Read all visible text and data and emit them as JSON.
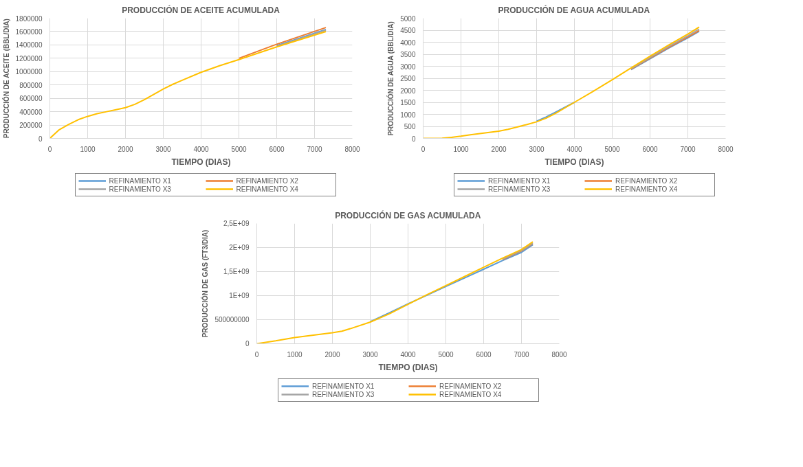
{
  "chart_data": [
    {
      "type": "line",
      "title": "PRODUCCIÓN DE ACEITE ACUMULADA",
      "xlabel": "TIEMPO (DIAS)",
      "ylabel": "PRODUCCIÓN DE ACEITE (BBL/DIA)",
      "x": [
        0,
        250,
        500,
        750,
        1000,
        1250,
        1500,
        1750,
        2000,
        2250,
        2500,
        2750,
        3000,
        3250,
        3500,
        4000,
        4500,
        5000,
        6000,
        7300
      ],
      "series": [
        {
          "name": "REFINAMIENTO X1",
          "color": "#5b9bd5",
          "values": [
            null,
            null,
            null,
            null,
            null,
            null,
            null,
            null,
            null,
            null,
            null,
            null,
            null,
            null,
            null,
            null,
            null,
            null,
            1390000,
            1630000
          ]
        },
        {
          "name": "REFINAMIENTO X2",
          "color": "#ed7d31",
          "values": [
            null,
            null,
            null,
            null,
            null,
            null,
            null,
            null,
            null,
            null,
            null,
            null,
            null,
            null,
            null,
            null,
            null,
            1200000,
            1410000,
            1660000
          ]
        },
        {
          "name": "REFINAMIENTO X3",
          "color": "#a5a5a5",
          "values": [
            null,
            null,
            null,
            null,
            null,
            null,
            null,
            null,
            null,
            null,
            null,
            null,
            null,
            null,
            null,
            null,
            null,
            null,
            1380000,
            1620000
          ]
        },
        {
          "name": "REFINAMIENTO X4",
          "color": "#ffc000",
          "values": [
            0,
            130000,
            210000,
            280000,
            330000,
            370000,
            400000,
            430000,
            460000,
            510000,
            580000,
            660000,
            740000,
            810000,
            870000,
            990000,
            1090000,
            1180000,
            1370000,
            1600000
          ]
        }
      ],
      "xlim": [
        0,
        8000
      ],
      "xticks": [
        0,
        1000,
        2000,
        3000,
        4000,
        5000,
        6000,
        7000,
        8000
      ],
      "ylim": [
        0,
        1800000
      ],
      "yticks": [
        0,
        200000,
        400000,
        600000,
        800000,
        1000000,
        1200000,
        1400000,
        1600000,
        1800000
      ],
      "grid": true,
      "legend": "bottom"
    },
    {
      "type": "line",
      "title": "PRODUCCIÓN DE AGUA ACUMULADA",
      "xlabel": "TIEMPO (DIAS)",
      "ylabel": "PRODUCCIÓN DE AGUA (BBL/DIA)",
      "x": [
        0,
        500,
        750,
        1000,
        1250,
        1500,
        1750,
        2000,
        2250,
        2500,
        2750,
        3000,
        3250,
        3500,
        4000,
        4500,
        5000,
        5500,
        6000,
        6500,
        7000,
        7300
      ],
      "series": [
        {
          "name": "REFINAMIENTO X1",
          "color": "#5b9bd5",
          "values": [
            null,
            null,
            null,
            null,
            null,
            null,
            null,
            null,
            null,
            null,
            null,
            720,
            890,
            1090,
            1500,
            null,
            null,
            2860,
            3310,
            3760,
            4180,
            4450
          ]
        },
        {
          "name": "REFINAMIENTO X2",
          "color": "#ed7d31",
          "values": [
            null,
            null,
            null,
            null,
            null,
            null,
            null,
            null,
            null,
            null,
            null,
            null,
            null,
            null,
            null,
            null,
            null,
            2880,
            3340,
            3790,
            4220,
            4480
          ]
        },
        {
          "name": "REFINAMIENTO X3",
          "color": "#a5a5a5",
          "values": [
            null,
            null,
            null,
            null,
            null,
            null,
            null,
            null,
            null,
            null,
            null,
            null,
            null,
            null,
            null,
            null,
            null,
            2900,
            3370,
            3830,
            4270,
            4550
          ]
        },
        {
          "name": "REFINAMIENTO X4",
          "color": "#ffc000",
          "values": [
            0,
            10,
            40,
            90,
            150,
            200,
            250,
            300,
            380,
            480,
            580,
            690,
            840,
            1040,
            1500,
            1960,
            2440,
            2930,
            3420,
            3890,
            4340,
            4630
          ]
        }
      ],
      "xlim": [
        0,
        8000
      ],
      "xticks": [
        0,
        1000,
        2000,
        3000,
        4000,
        5000,
        6000,
        7000,
        8000
      ],
      "ylim": [
        0,
        5000
      ],
      "yticks": [
        0,
        500,
        1000,
        1500,
        2000,
        2500,
        3000,
        3500,
        4000,
        4500,
        5000
      ],
      "grid": true,
      "legend": "bottom"
    },
    {
      "type": "line",
      "title": "PRODUCCIÓN DE GAS ACUMULADA",
      "xlabel": "TIEMPO (DIAS)",
      "ylabel": "PRODUCCIÓN DE GAS (FT3/DIA)",
      "x": [
        0,
        500,
        1000,
        1500,
        2000,
        2250,
        2500,
        3000,
        3500,
        4000,
        4500,
        5000,
        5500,
        6000,
        6500,
        7000,
        7300
      ],
      "series": [
        {
          "name": "REFINAMIENTO X1",
          "color": "#5b9bd5",
          "values": [
            null,
            null,
            null,
            null,
            null,
            null,
            null,
            460000000,
            640000000,
            830000000,
            1010000000,
            1190000000,
            1370000000,
            1550000000,
            1730000000,
            1900000000,
            2060000000
          ]
        },
        {
          "name": "REFINAMIENTO X2",
          "color": "#ed7d31",
          "values": [
            null,
            null,
            null,
            null,
            null,
            null,
            null,
            null,
            null,
            null,
            null,
            null,
            null,
            null,
            1750000000,
            1930000000,
            2080000000
          ]
        },
        {
          "name": "REFINAMIENTO X3",
          "color": "#a5a5a5",
          "values": [
            null,
            null,
            null,
            null,
            null,
            null,
            null,
            null,
            null,
            null,
            null,
            null,
            null,
            null,
            1760000000,
            1940000000,
            2090000000
          ]
        },
        {
          "name": "REFINAMIENTO X4",
          "color": "#ffc000",
          "values": [
            0,
            60000000,
            130000000,
            180000000,
            230000000,
            260000000,
            320000000,
            450000000,
            620000000,
            820000000,
            1020000000,
            1210000000,
            1400000000,
            1590000000,
            1780000000,
            1960000000,
            2120000000
          ]
        }
      ],
      "xlim": [
        0,
        8000
      ],
      "xticks": [
        0,
        1000,
        2000,
        3000,
        4000,
        5000,
        6000,
        7000,
        8000
      ],
      "ylim": [
        0,
        2500000000
      ],
      "yticks": [
        0,
        500000000,
        {
          "value": 1000000000,
          "label": "1E+09"
        },
        {
          "value": 1500000000,
          "label": "1,5E+09"
        },
        {
          "value": 2000000000,
          "label": "2E+09"
        },
        {
          "value": 2500000000,
          "label": "2,5E+09"
        }
      ],
      "grid": true,
      "legend": "bottom"
    }
  ]
}
